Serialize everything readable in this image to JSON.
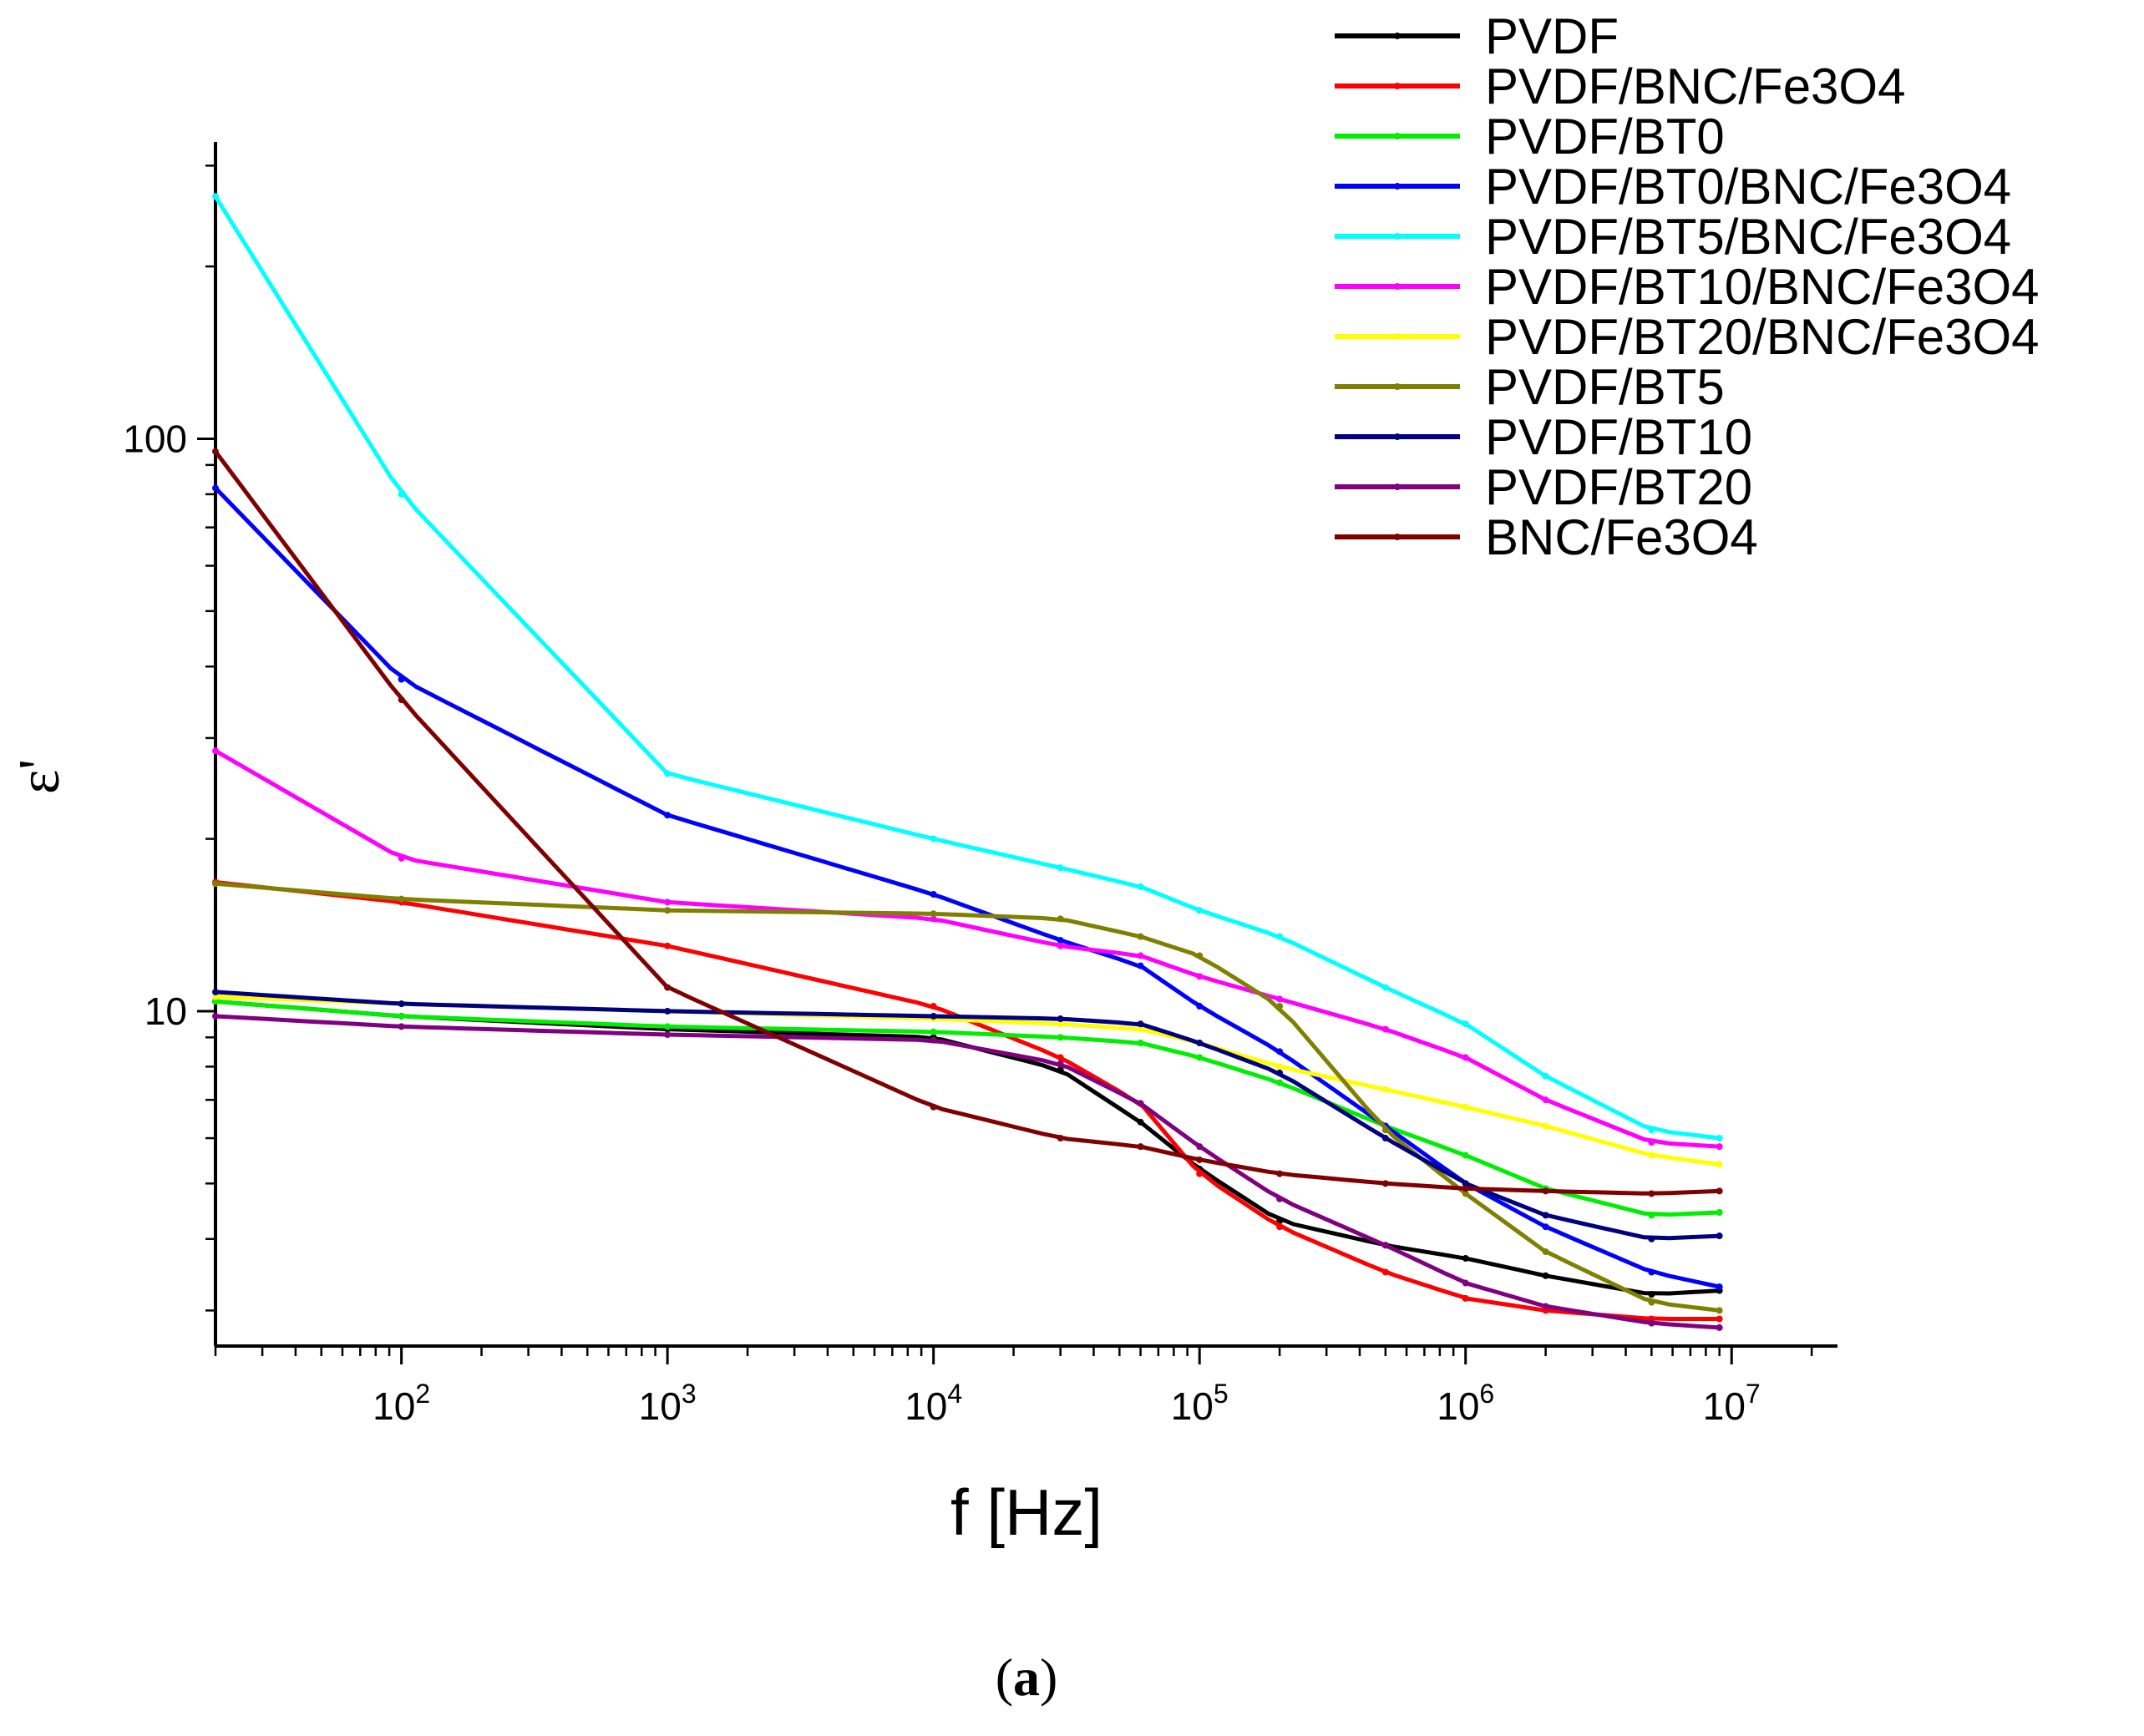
{
  "chart_data": {
    "type": "line",
    "title": "",
    "xlabel": "f [Hz]",
    "ylabel": "ε'",
    "xscale": "log",
    "yscale": "log",
    "xlim": [
      20,
      25000000
    ],
    "ylim": [
      2.6,
      330
    ],
    "grid": false,
    "legend_position": "top-right",
    "panel_label": "a",
    "x_ticks": [
      {
        "value": 100,
        "label": "10",
        "exp": "2"
      },
      {
        "value": 1000,
        "label": "10",
        "exp": "3"
      },
      {
        "value": 10000,
        "label": "10",
        "exp": "4"
      },
      {
        "value": 100000,
        "label": "10",
        "exp": "5"
      },
      {
        "value": 1000000,
        "label": "10",
        "exp": "6"
      },
      {
        "value": 10000000,
        "label": "10",
        "exp": "7"
      }
    ],
    "y_ticks": [
      {
        "value": 10,
        "label": "10"
      },
      {
        "value": 100,
        "label": "100"
      }
    ],
    "x": [
      20,
      100,
      1000,
      10000,
      30000,
      60000,
      100000,
      200000,
      500000,
      1000000,
      2000000,
      5000000,
      9000000
    ],
    "series": [
      {
        "name": "PVDF",
        "color": "#000000",
        "marker": "square",
        "values": [
          10.4,
          9.8,
          9.3,
          9.0,
          7.9,
          6.4,
          5.3,
          4.3,
          3.9,
          3.7,
          3.45,
          3.2,
          3.25
        ]
      },
      {
        "name": "PVDF/BNC/Fe3O4",
        "color": "#ff0000",
        "marker": "circle",
        "values": [
          16.8,
          15.5,
          13.0,
          10.2,
          8.3,
          6.9,
          5.2,
          4.2,
          3.5,
          3.15,
          3.0,
          2.9,
          2.9
        ]
      },
      {
        "name": "PVDF/BT0",
        "color": "#00ee00",
        "marker": "triangle-up",
        "values": [
          10.4,
          9.8,
          9.4,
          9.2,
          9.0,
          8.8,
          8.3,
          7.5,
          6.3,
          5.6,
          4.9,
          4.4,
          4.45
        ]
      },
      {
        "name": "PVDF/BT0/BNC/Fe3O4",
        "color": "#0000ff",
        "marker": "triangle-down",
        "values": [
          82,
          38,
          22,
          16,
          13.3,
          12.0,
          10.2,
          8.5,
          6.3,
          5.0,
          4.2,
          3.5,
          3.3
        ]
      },
      {
        "name": "PVDF/BT5/BNC/Fe3O4",
        "color": "#00ffff",
        "marker": "diamond",
        "values": [
          265,
          80,
          26,
          20,
          17.8,
          16.5,
          15.0,
          13.5,
          11.0,
          9.5,
          7.7,
          6.2,
          6.0
        ]
      },
      {
        "name": "PVDF/BT10/BNC/Fe3O4",
        "color": "#ff00ff",
        "marker": "triangle-left",
        "values": [
          28.5,
          18.5,
          15.5,
          14.5,
          13.0,
          12.5,
          11.5,
          10.5,
          9.3,
          8.3,
          7.0,
          5.9,
          5.8
        ]
      },
      {
        "name": "PVDF/BT20/BNC/Fe3O4",
        "color": "#ffff00",
        "marker": "triangle-right",
        "values": [
          10.6,
          10.3,
          10.0,
          9.7,
          9.5,
          9.3,
          8.8,
          8.0,
          7.3,
          6.8,
          6.3,
          5.6,
          5.4
        ]
      },
      {
        "name": "PVDF/BT5",
        "color": "#808000",
        "marker": "hexagon",
        "values": [
          16.7,
          15.7,
          15.0,
          14.8,
          14.5,
          13.5,
          12.5,
          10.2,
          6.2,
          4.8,
          3.8,
          3.1,
          3.0
        ]
      },
      {
        "name": "PVDF/BT10",
        "color": "#000080",
        "marker": "star",
        "values": [
          10.8,
          10.3,
          10.0,
          9.8,
          9.7,
          9.5,
          8.8,
          7.8,
          6.0,
          5.0,
          4.4,
          4.0,
          4.05
        ]
      },
      {
        "name": "PVDF/BT20",
        "color": "#800080",
        "marker": "pentagon",
        "values": [
          9.8,
          9.4,
          9.1,
          8.9,
          8.1,
          6.9,
          5.8,
          4.7,
          3.9,
          3.35,
          3.05,
          2.85,
          2.8
        ]
      },
      {
        "name": "BNC/Fe3O4",
        "color": "#800000",
        "marker": "circle-open",
        "values": [
          95,
          35,
          11.0,
          6.8,
          6.0,
          5.8,
          5.5,
          5.2,
          5.0,
          4.9,
          4.85,
          4.8,
          4.85
        ]
      }
    ]
  }
}
